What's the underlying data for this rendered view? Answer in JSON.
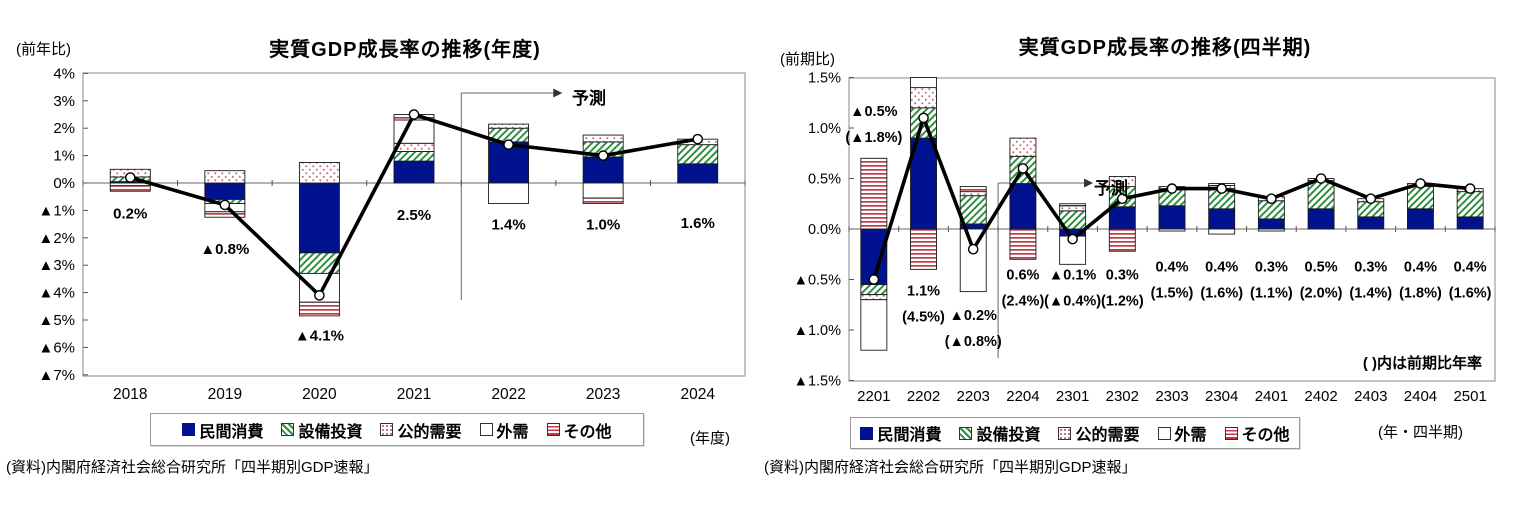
{
  "colors": {
    "consumption_navy": "#00128e",
    "capex_green": "#2f8f3f",
    "public_dot": "#c2697c",
    "other_red": "#c13a44",
    "line_black": "#000000",
    "bar_outline": "#1a1a1a",
    "axis_gray": "#666666"
  },
  "legend": {
    "items": [
      {
        "key": "consumption",
        "label": "民間消費",
        "swatch": "navy-solid-square"
      },
      {
        "key": "capex",
        "label": "設備投資",
        "swatch": "green-diagonal-hatch-square"
      },
      {
        "key": "public",
        "label": "公的需要",
        "swatch": "dotted-square"
      },
      {
        "key": "external",
        "label": "外需",
        "swatch": "white-square"
      },
      {
        "key": "other",
        "label": "その他",
        "swatch": "red-horizontal-stripes-square"
      }
    ]
  },
  "chart_data": [
    {
      "id": "annual-gdp-chart",
      "type": "bar",
      "subtype": "stacked-bar-with-line",
      "title": "実質GDP成長率の推移(年度)",
      "y_axis_unit": "(前年比)",
      "x_axis_caption": "(年度)",
      "source": "(資料)内閣府経済社会総合研究所「四半期別GDP速報」",
      "forecast_label": "予測",
      "forecast_start_index": 4,
      "ylim": [
        -7,
        4
      ],
      "grid": "zero-line-only",
      "yticks": [
        {
          "label": "4%",
          "value": 4
        },
        {
          "label": "3%",
          "value": 3
        },
        {
          "label": "2%",
          "value": 2
        },
        {
          "label": "1%",
          "value": 1
        },
        {
          "label": "0%",
          "value": 0
        },
        {
          "label": "▲1%",
          "value": -1
        },
        {
          "label": "▲2%",
          "value": -2
        },
        {
          "label": "▲3%",
          "value": -3
        },
        {
          "label": "▲4%",
          "value": -4
        },
        {
          "label": "▲5%",
          "value": -5
        },
        {
          "label": "▲6%",
          "value": -6
        },
        {
          "label": "▲7%",
          "value": -7
        }
      ],
      "categories": [
        "2018",
        "2019",
        "2020",
        "2021",
        "2022",
        "2023",
        "2024"
      ],
      "series": [
        {
          "key": "consumption",
          "name": "民間消費",
          "values": [
            0.05,
            -0.6,
            -2.55,
            0.8,
            1.5,
            0.95,
            0.7
          ]
        },
        {
          "key": "capex",
          "name": "設備投資",
          "values": [
            0.17,
            -0.15,
            -0.75,
            0.35,
            0.5,
            0.55,
            0.7
          ]
        },
        {
          "key": "public",
          "name": "公的需要",
          "values": [
            0.28,
            0.45,
            0.75,
            0.3,
            0.15,
            0.25,
            0.2
          ]
        },
        {
          "key": "external",
          "name": "外需",
          "values": [
            -0.1,
            -0.3,
            -1.05,
            0.85,
            -0.75,
            -0.55,
            0
          ]
        },
        {
          "key": "other",
          "name": "その他",
          "values": [
            -0.2,
            -0.2,
            -0.5,
            0.2,
            0,
            -0.2,
            0
          ]
        }
      ],
      "line": {
        "name": "実質GDP成長率",
        "values": [
          0.2,
          -0.8,
          -4.1,
          2.5,
          1.4,
          1.0,
          1.6
        ]
      },
      "bar_labels": [
        {
          "lines": [
            "0.2%"
          ],
          "ly": -1.3
        },
        {
          "lines": [
            "▲0.8%"
          ],
          "ly": -2.6
        },
        {
          "lines": [
            "▲4.1%"
          ],
          "ly": -5.75
        },
        {
          "lines": [
            "2.5%"
          ],
          "ly": -1.35
        },
        {
          "lines": [
            "1.4%"
          ],
          "ly": -1.7
        },
        {
          "lines": [
            "1.0%"
          ],
          "ly": -1.7
        },
        {
          "lines": [
            "1.6%"
          ],
          "ly": -1.65
        }
      ]
    },
    {
      "id": "quarterly-gdp-chart",
      "type": "bar",
      "subtype": "stacked-bar-with-line",
      "title": "実質GDP成長率の推移(四半期)",
      "y_axis_unit": "(前期比)",
      "x_axis_caption": "(年・四半期)",
      "source": "(資料)内閣府経済社会総合研究所「四半期別GDP速報」",
      "forecast_label": "予測",
      "forecast_start_index": 3,
      "note": "(  )内は前期比年率",
      "ylim": [
        -1.5,
        1.5
      ],
      "grid": "zero-line-only",
      "yticks": [
        {
          "label": "1.5%",
          "value": 1.5
        },
        {
          "label": "1.0%",
          "value": 1.0
        },
        {
          "label": "0.5%",
          "value": 0.5
        },
        {
          "label": "0.0%",
          "value": 0.0
        },
        {
          "label": "▲0.5%",
          "value": -0.5
        },
        {
          "label": "▲1.0%",
          "value": -1.0
        },
        {
          "label": "▲1.5%",
          "value": -1.5
        }
      ],
      "categories": [
        "2201",
        "2202",
        "2203",
        "2204",
        "2301",
        "2302",
        "2303",
        "2304",
        "2401",
        "2402",
        "2403",
        "2404",
        "2501"
      ],
      "series": [
        {
          "key": "consumption",
          "name": "民間消費",
          "values": [
            -0.55,
            0.9,
            0.05,
            0.45,
            -0.07,
            0.22,
            0.23,
            0.2,
            0.1,
            0.2,
            0.12,
            0.2,
            0.12
          ]
        },
        {
          "key": "capex",
          "name": "設備投資",
          "values": [
            -0.1,
            0.3,
            0.28,
            0.27,
            0.18,
            0.2,
            0.17,
            0.2,
            0.18,
            0.28,
            0.15,
            0.22,
            0.25
          ]
        },
        {
          "key": "public",
          "name": "公的需要",
          "values": [
            -0.05,
            0.2,
            0.04,
            0.18,
            0.05,
            0.1,
            0.02,
            0.03,
            0.04,
            0.02,
            0.03,
            0.03,
            0.03
          ]
        },
        {
          "key": "external",
          "name": "外需",
          "values": [
            -0.5,
            0.1,
            -0.62,
            0,
            -0.28,
            0,
            -0.02,
            -0.05,
            -0.02,
            0,
            0,
            0,
            0
          ]
        },
        {
          "key": "other",
          "name": "その他",
          "values": [
            0.7,
            -0.4,
            0.05,
            -0.3,
            0.02,
            -0.22,
            0,
            0.02,
            0,
            0,
            0,
            0,
            0
          ]
        }
      ],
      "line": {
        "name": "実質GDP成長率",
        "values": [
          -0.5,
          1.1,
          -0.2,
          0.6,
          -0.1,
          0.3,
          0.4,
          0.4,
          0.3,
          0.5,
          0.3,
          0.45,
          0.4
        ]
      },
      "bar_labels": [
        {
          "lines": [
            "▲0.5%",
            "(▲1.8%)"
          ],
          "ly": 1.12
        },
        {
          "lines": [
            "1.1%",
            "(4.5%)"
          ],
          "ly": -0.66
        },
        {
          "lines": [
            "▲0.2%",
            "(▲0.8%)"
          ],
          "ly": -0.9
        },
        {
          "lines": [
            "0.6%",
            "(2.4%)"
          ],
          "ly": -0.5
        },
        {
          "lines": [
            "▲0.1%",
            "(▲0.4%)"
          ],
          "ly": -0.5
        },
        {
          "lines": [
            "0.3%",
            "(1.2%)"
          ],
          "ly": -0.5
        },
        {
          "lines": [
            "0.4%",
            "(1.5%)"
          ],
          "ly": -0.42
        },
        {
          "lines": [
            "0.4%",
            "(1.6%)"
          ],
          "ly": -0.42
        },
        {
          "lines": [
            "0.3%",
            "(1.1%)"
          ],
          "ly": -0.42
        },
        {
          "lines": [
            "0.5%",
            "(2.0%)"
          ],
          "ly": -0.42
        },
        {
          "lines": [
            "0.3%",
            "(1.4%)"
          ],
          "ly": -0.42
        },
        {
          "lines": [
            "0.4%",
            "(1.8%)"
          ],
          "ly": -0.42
        },
        {
          "lines": [
            "0.4%",
            "(1.6%)"
          ],
          "ly": -0.42
        }
      ]
    }
  ]
}
